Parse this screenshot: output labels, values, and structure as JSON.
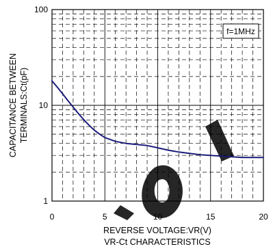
{
  "chart_data": {
    "type": "line",
    "title": "VR-Ct CHARACTERISTICS",
    "xlabel": "REVERSE VOLTAGE:VR(V)",
    "ylabel_line1": "CAPACITANCE BETWEEN",
    "ylabel_line2": "TERMINALS:Ct(pF)",
    "annotation": "f=1MHz",
    "xlim": [
      0,
      20
    ],
    "ylim": [
      1,
      100
    ],
    "y_scale": "log",
    "grid": true,
    "x_ticks": [
      0,
      5,
      10,
      15,
      20
    ],
    "x_tick_labels": [
      "0",
      "5",
      "10",
      "15",
      "20"
    ],
    "y_ticks": [
      1,
      10,
      100
    ],
    "y_tick_labels": [
      "1",
      "10",
      "100"
    ],
    "series": [
      {
        "color": "#1c1c7a",
        "x": [
          0,
          0.5,
          1,
          1.5,
          2,
          2.5,
          3,
          3.5,
          4,
          4.5,
          5,
          6,
          7,
          8,
          9,
          10,
          11,
          12,
          13,
          14,
          15,
          16,
          17,
          18,
          19,
          20
        ],
        "y": [
          18,
          15.5,
          13.2,
          11.2,
          9.6,
          8.2,
          7.1,
          6.2,
          5.5,
          5.0,
          4.6,
          4.2,
          4.0,
          3.9,
          3.8,
          3.6,
          3.4,
          3.25,
          3.15,
          3.05,
          3.0,
          2.95,
          2.9,
          2.85,
          2.85,
          2.85
        ]
      }
    ]
  }
}
